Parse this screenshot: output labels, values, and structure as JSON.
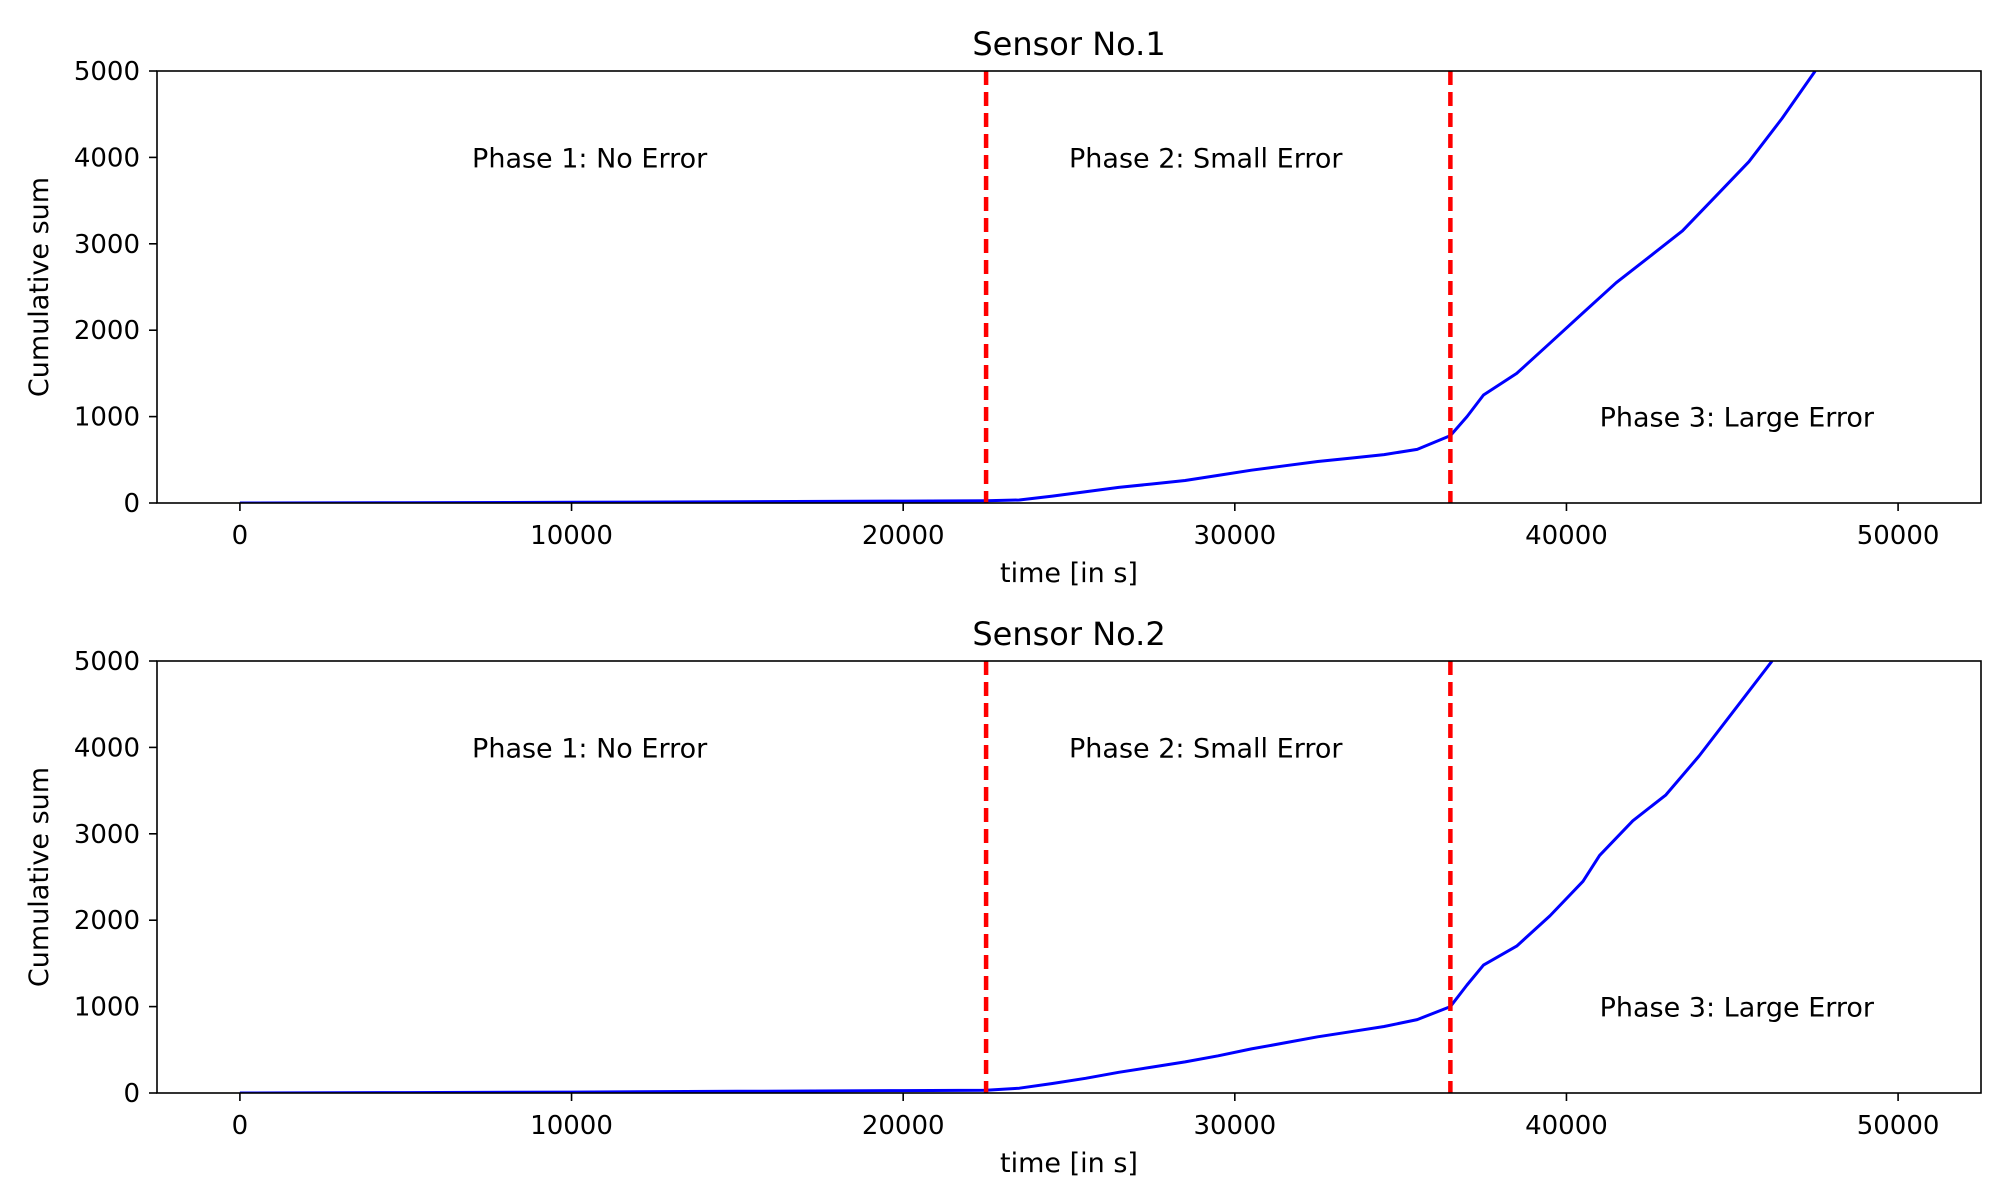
{
  "chart_data": [
    {
      "type": "line",
      "title": "Sensor No.1",
      "xlabel": "time [in s]",
      "ylabel": "Cumulative sum",
      "xlim": [
        -2500,
        52500
      ],
      "ylim": [
        0,
        5000
      ],
      "xticks": [
        0,
        10000,
        20000,
        30000,
        40000,
        50000
      ],
      "yticks": [
        0,
        1000,
        2000,
        3000,
        4000,
        5000
      ],
      "grid": false,
      "series": [
        {
          "color": "#0000ff",
          "x": [
            0,
            5000,
            10000,
            15000,
            20000,
            22500,
            23500,
            24500,
            25500,
            26500,
            27500,
            28500,
            29500,
            30500,
            31500,
            32500,
            33500,
            34500,
            35500,
            36500,
            37000,
            37500,
            38500,
            39500,
            40500,
            41500,
            42500,
            43500,
            44500,
            45500,
            46500,
            47500
          ],
          "values": [
            0,
            4,
            8,
            15,
            22,
            25,
            35,
            80,
            130,
            180,
            220,
            260,
            320,
            380,
            430,
            480,
            520,
            560,
            620,
            780,
            1000,
            1250,
            1500,
            1850,
            2200,
            2550,
            2850,
            3150,
            3550,
            3950,
            4450,
            5000
          ]
        }
      ],
      "vlines": {
        "x": [
          22500,
          36500
        ],
        "color": "#ff0000",
        "style": "dashed"
      },
      "annotations": [
        {
          "text": "Phase 1: No Error",
          "x": 7000,
          "y": 4000
        },
        {
          "text": "Phase 2: Small Error",
          "x": 25000,
          "y": 4000
        },
        {
          "text": "Phase 3: Large Error",
          "x": 41000,
          "y": 1000
        }
      ]
    },
    {
      "type": "line",
      "title": "Sensor No.2",
      "xlabel": "time [in s]",
      "ylabel": "Cumulative sum",
      "xlim": [
        -2500,
        52500
      ],
      "ylim": [
        0,
        5000
      ],
      "xticks": [
        0,
        10000,
        20000,
        30000,
        40000,
        50000
      ],
      "yticks": [
        0,
        1000,
        2000,
        3000,
        4000,
        5000
      ],
      "grid": false,
      "series": [
        {
          "color": "#0000ff",
          "x": [
            0,
            5000,
            10000,
            15000,
            20000,
            22500,
            23500,
            24500,
            25500,
            26500,
            27500,
            28500,
            29500,
            30500,
            31500,
            32500,
            33500,
            34500,
            35500,
            36500,
            37000,
            37500,
            38500,
            39500,
            40500,
            41000,
            42000,
            43000,
            44000,
            45000,
            46200
          ],
          "values": [
            0,
            5,
            10,
            20,
            28,
            32,
            55,
            110,
            170,
            240,
            300,
            360,
            430,
            510,
            580,
            650,
            710,
            770,
            850,
            1000,
            1250,
            1480,
            1700,
            2050,
            2450,
            2750,
            3150,
            3450,
            3900,
            4400,
            5000
          ]
        }
      ],
      "vlines": {
        "x": [
          22500,
          36500
        ],
        "color": "#ff0000",
        "style": "dashed"
      },
      "annotations": [
        {
          "text": "Phase 1: No Error",
          "x": 7000,
          "y": 4000
        },
        {
          "text": "Phase 2: Small Error",
          "x": 25000,
          "y": 4000
        },
        {
          "text": "Phase 3: Large Error",
          "x": 41000,
          "y": 1000
        }
      ]
    }
  ]
}
